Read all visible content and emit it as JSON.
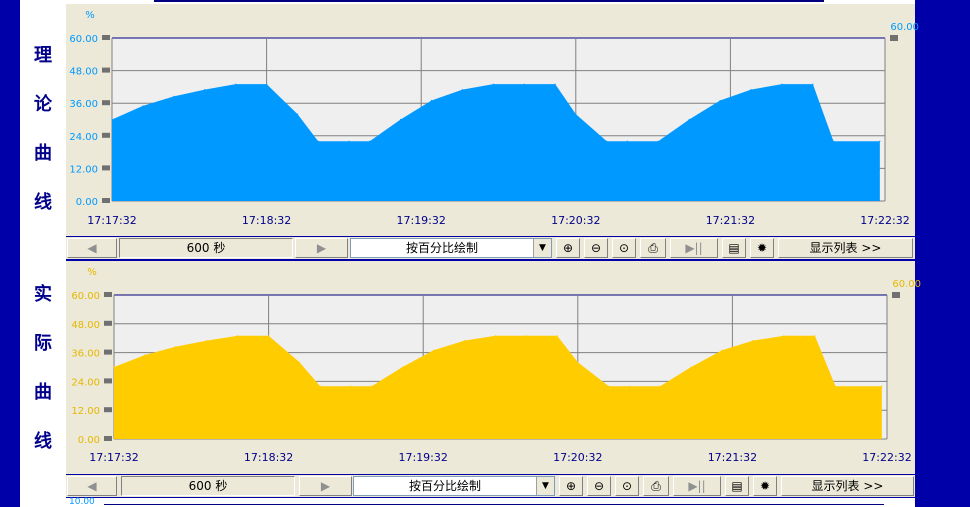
{
  "side_labels": {
    "top": [
      "理",
      "论",
      "曲",
      "线"
    ],
    "bottom": [
      "实",
      "际",
      "曲",
      "线"
    ]
  },
  "charts_ui": [
    {
      "unit": "%",
      "right_marker": "60.00",
      "toolbar": {
        "span_value": "600",
        "span_unit": "秒",
        "mode": "按百分比绘制",
        "list_button": "显示列表 >>"
      }
    },
    {
      "unit": "%",
      "right_marker": "60.00",
      "toolbar": {
        "span_value": "600",
        "span_unit": "秒",
        "mode": "按百分比绘制",
        "list_button": "显示列表 >>"
      }
    }
  ],
  "next_chart_peek_label": "10.00",
  "colors": {
    "top_fill": "#0099ff",
    "bottom_fill": "#ffcc00",
    "top_label": "#0099ff",
    "bottom_label": "#e6b800",
    "gridline": "#808080",
    "plot_bg": "#efefef"
  },
  "chart_data": [
    {
      "type": "area",
      "title": "理论曲线",
      "ylabel": "%",
      "ylim": [
        0,
        60
      ],
      "yticks": [
        "0.00",
        "12.00",
        "24.00",
        "36.00",
        "48.00",
        "60.00"
      ],
      "xticks": [
        "17:17:32",
        "17:18:32",
        "17:19:32",
        "17:20:32",
        "17:21:32",
        "17:22:32"
      ],
      "grid": true,
      "series": [
        {
          "x": [
            "17:17:32",
            "17:17:44",
            "17:17:56",
            "17:18:08",
            "17:18:20",
            "17:18:32",
            "17:18:44",
            "17:18:52",
            "17:19:04",
            "17:19:12",
            "17:19:24",
            "17:19:36",
            "17:19:48",
            "17:20:00",
            "17:20:12",
            "17:20:24",
            "17:20:32",
            "17:20:44",
            "17:20:52",
            "17:21:04",
            "17:21:16",
            "17:21:28",
            "17:21:40",
            "17:21:52",
            "17:22:04",
            "17:22:12",
            "17:22:30"
          ],
          "values": [
            30,
            35,
            38.5,
            41,
            43,
            43,
            32,
            22,
            22,
            22,
            30,
            37,
            41,
            43,
            43,
            43,
            32,
            22,
            22,
            22,
            30,
            37,
            41,
            43,
            43,
            22,
            22
          ]
        }
      ]
    },
    {
      "type": "area",
      "title": "实际曲线",
      "ylabel": "%",
      "ylim": [
        0,
        60
      ],
      "yticks": [
        "0.00",
        "12.00",
        "24.00",
        "36.00",
        "48.00",
        "60.00"
      ],
      "xticks": [
        "17:17:32",
        "17:18:32",
        "17:19:32",
        "17:20:32",
        "17:21:32",
        "17:22:32"
      ],
      "grid": true,
      "series": [
        {
          "x": [
            "17:17:32",
            "17:17:44",
            "17:17:56",
            "17:18:08",
            "17:18:20",
            "17:18:32",
            "17:18:44",
            "17:18:52",
            "17:19:04",
            "17:19:12",
            "17:19:24",
            "17:19:36",
            "17:19:48",
            "17:20:00",
            "17:20:12",
            "17:20:24",
            "17:20:32",
            "17:20:44",
            "17:20:52",
            "17:21:04",
            "17:21:16",
            "17:21:28",
            "17:21:40",
            "17:21:52",
            "17:22:04",
            "17:22:12",
            "17:22:30"
          ],
          "values": [
            30,
            35,
            38.5,
            41,
            43,
            43,
            32,
            22,
            22,
            22,
            30,
            37,
            41,
            43,
            43,
            43,
            32,
            22,
            22,
            22,
            30,
            37,
            41,
            43,
            43,
            22,
            22
          ]
        }
      ]
    }
  ]
}
